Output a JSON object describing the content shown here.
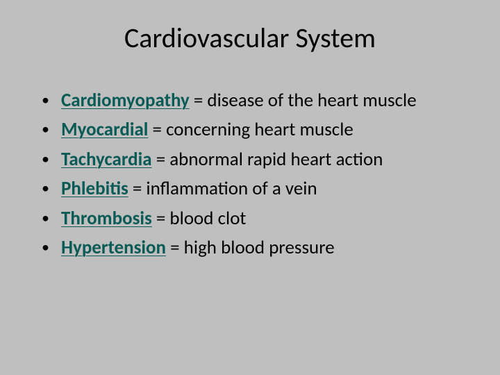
{
  "title": "Cardiovascular System",
  "title_fontsize": 40,
  "title_color": "#000000",
  "background_color": "#bfbfbf",
  "term_color": "#0a5a56",
  "body_fontsize": 27,
  "items": [
    {
      "term": "Cardiomyopathy",
      "definition": " = disease of the heart muscle"
    },
    {
      "term": "Myocardial",
      "definition": " = concerning heart muscle"
    },
    {
      "term": "Tachycardia",
      "definition": " =  abnormal rapid heart action"
    },
    {
      "term": "Phlebitis",
      "definition": " = inflammation of a vein"
    },
    {
      "term": "Thrombosis",
      "definition": " = blood clot"
    },
    {
      "term": "Hypertension",
      "definition": " = high blood pressure"
    }
  ]
}
